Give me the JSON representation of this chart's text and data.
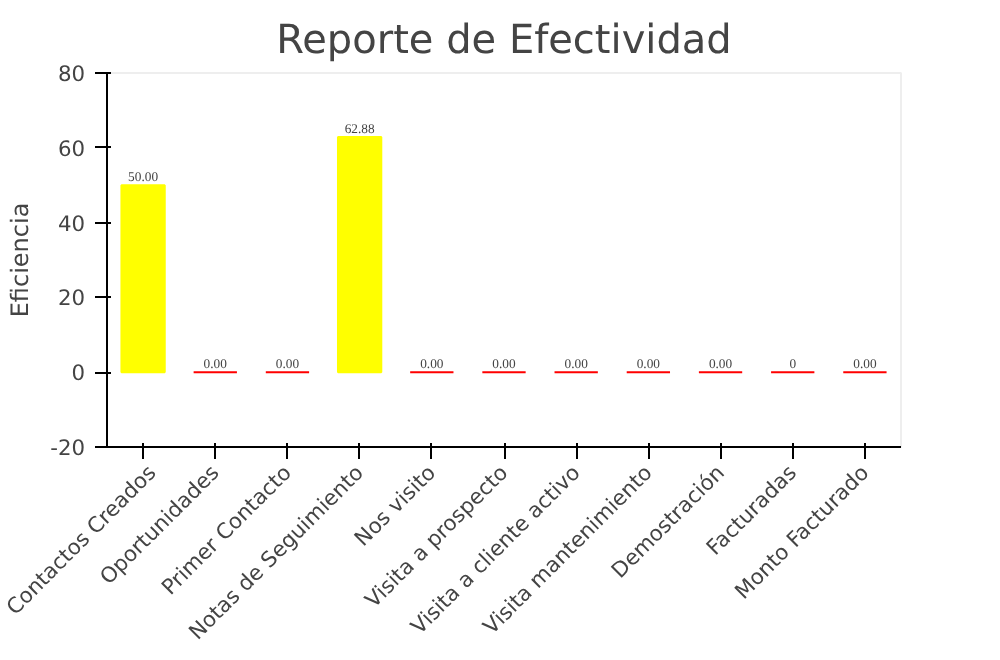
{
  "chart_data": {
    "type": "bar",
    "title": "Reporte de Efectividad",
    "ylabel": "Eficiencia",
    "categories": [
      "Contactos Creados",
      "Oportunidades",
      "Primer Contacto",
      "Notas de Seguimiento",
      "Nos visito",
      "Visita a prospecto",
      "Visita a cliente activo",
      "Visita mantenimiento",
      "Demostración",
      "Facturadas",
      "Monto Facturado"
    ],
    "values": [
      50,
      0,
      0,
      62.88,
      0,
      0,
      0,
      0,
      0,
      0,
      0
    ],
    "colors": [
      "#ffff00",
      "#ff0000",
      "#ff0000",
      "#ffff00",
      "#ff0000",
      "#ff0000",
      "#ff0000",
      "#ff0000",
      "#ff0000",
      "#ff0000",
      "#ff0000"
    ],
    "value_labels": [
      "50.00",
      "0.00",
      "0.00",
      "62.88",
      "0.00",
      "0.00",
      "0.00",
      "0.00",
      "0.00",
      "0",
      "0.00"
    ],
    "ylim": [
      -20,
      80
    ],
    "yticks": [
      -20,
      0,
      20,
      40,
      60,
      80
    ],
    "grid": false
  }
}
